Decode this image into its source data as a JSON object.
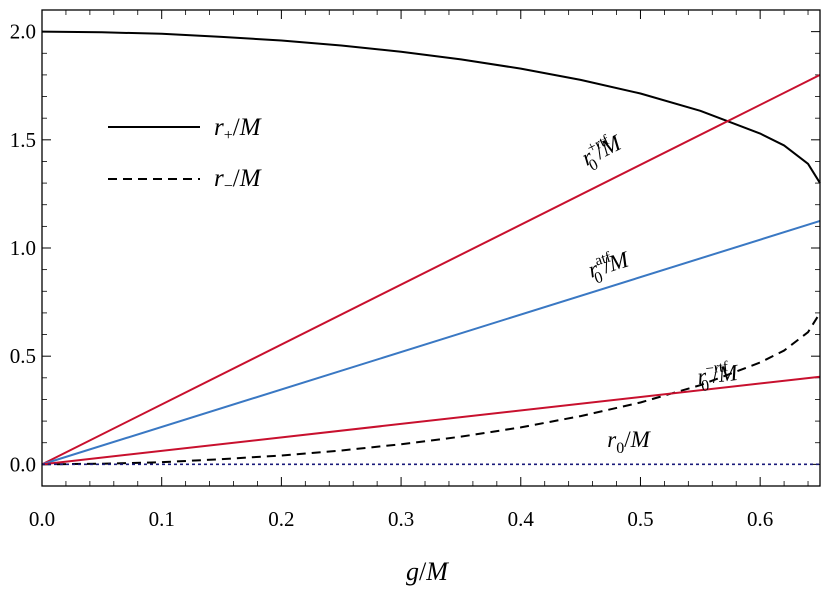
{
  "chart_data": {
    "type": "line",
    "title": "",
    "xlabel": "g/M",
    "ylabel": "",
    "xlim": [
      0,
      0.65
    ],
    "ylim": [
      -0.1,
      2.1
    ],
    "x_ticks": [
      0.0,
      0.1,
      0.2,
      0.3,
      0.4,
      0.5,
      0.6
    ],
    "x_tick_labels": [
      "0.0",
      "0.1",
      "0.2",
      "0.3",
      "0.4",
      "0.5",
      "0.6"
    ],
    "y_ticks": [
      0.0,
      0.5,
      1.0,
      1.5,
      2.0
    ],
    "y_tick_labels": [
      "0.0",
      "0.5",
      "1.0",
      "1.5",
      "2.0"
    ],
    "grid": false,
    "legend_position": "top-left",
    "legend": [
      {
        "label": "r₊/M",
        "style": "solid",
        "color": "#000000"
      },
      {
        "label": "r₋/M",
        "style": "dashed",
        "color": "#000000"
      }
    ],
    "series": [
      {
        "name": "r₊/M",
        "color": "#000000",
        "style": "solid",
        "x": [
          0.0,
          0.05,
          0.1,
          0.15,
          0.2,
          0.25,
          0.3,
          0.35,
          0.4,
          0.45,
          0.5,
          0.55,
          0.6,
          0.62,
          0.64,
          0.65
        ],
        "y": [
          2.0,
          1.997,
          1.99,
          1.976,
          1.959,
          1.936,
          1.907,
          1.872,
          1.829,
          1.777,
          1.714,
          1.634,
          1.529,
          1.474,
          1.389,
          1.3
        ]
      },
      {
        "name": "r₋/M",
        "color": "#000000",
        "style": "dashed",
        "x": [
          0.0,
          0.05,
          0.1,
          0.15,
          0.2,
          0.25,
          0.3,
          0.35,
          0.4,
          0.45,
          0.5,
          0.55,
          0.6,
          0.62,
          0.64,
          0.65
        ],
        "y": [
          0.0,
          0.003,
          0.01,
          0.024,
          0.041,
          0.064,
          0.093,
          0.128,
          0.171,
          0.223,
          0.286,
          0.366,
          0.471,
          0.526,
          0.611,
          0.7
        ]
      },
      {
        "name": "",
        "color": "#c8102e",
        "style": "solid",
        "x": [
          0.0,
          0.65
        ],
        "y": [
          0.0,
          1.8
        ]
      },
      {
        "name": "",
        "color": "#3a78c3",
        "style": "solid",
        "x": [
          0.0,
          0.65
        ],
        "y": [
          0.0,
          1.125
        ]
      },
      {
        "name": "",
        "color": "#c8102e",
        "style": "solid",
        "x": [
          0.0,
          0.65
        ],
        "y": [
          0.0,
          0.405
        ]
      },
      {
        "name": "",
        "color": "#1a1a7a",
        "style": "dotted",
        "x": [
          0.0,
          0.65
        ],
        "y": [
          0.0,
          0.0
        ]
      }
    ],
    "annotations": {
      "r0_plus_rtf": {
        "base": "r",
        "sub": "0",
        "sup": "+rtf",
        "tail": "/M",
        "x": 0.47,
        "y": 1.42,
        "angle_from_series": 2
      },
      "r0_atf": {
        "base": "r",
        "sub": "0",
        "sup": "atf",
        "tail": "/M",
        "x": 0.475,
        "y": 0.89,
        "angle_from_series": 3
      },
      "r0_minus_rtf": {
        "base": "r",
        "sub": "0",
        "sup": "−rtf",
        "tail": "/M",
        "x": 0.565,
        "y": 0.38,
        "angle_from_series": 4
      },
      "r0": {
        "base": "r",
        "sub": "0",
        "tail": "/M",
        "x": 0.49,
        "y": 0.08
      }
    }
  }
}
